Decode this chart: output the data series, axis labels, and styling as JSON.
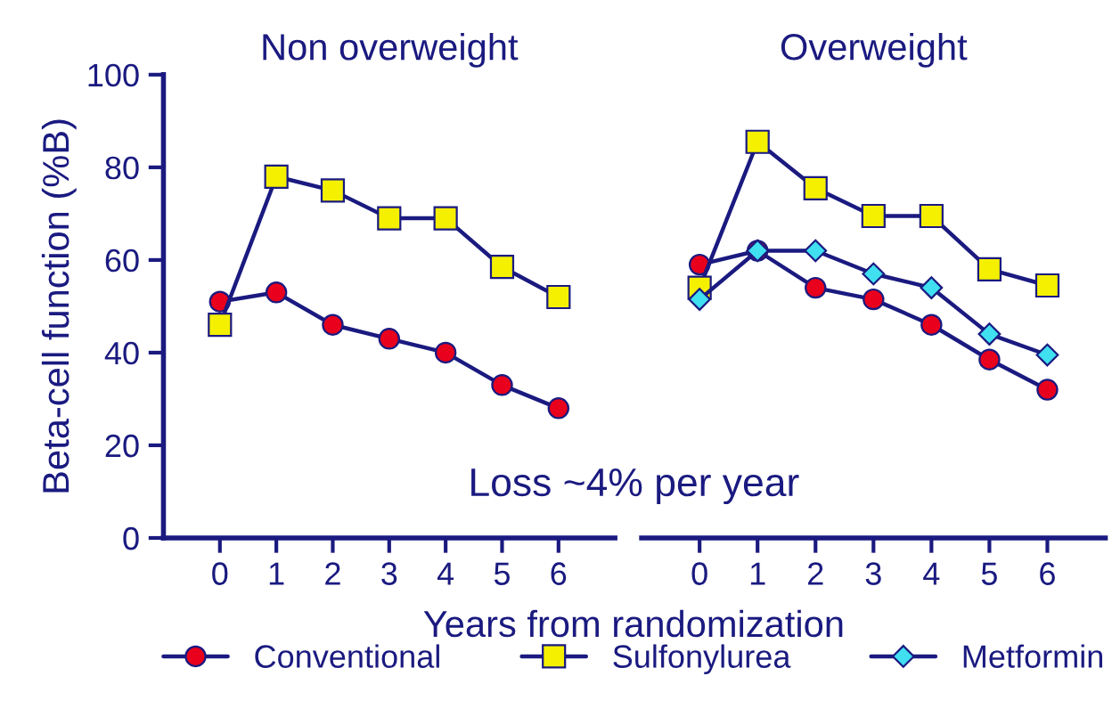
{
  "chart_data": [
    {
      "type": "line",
      "title": "Non overweight",
      "xlabel": "Years from randomization",
      "ylabel": "Beta-cell function (%B)",
      "x": [
        0,
        1,
        2,
        3,
        4,
        5,
        6
      ],
      "xlim": [
        -1,
        7
      ],
      "xticks": [
        0,
        1,
        2,
        3,
        4,
        5,
        6
      ],
      "ylim": [
        0,
        100
      ],
      "yticks": [
        0,
        20,
        40,
        60,
        80,
        100
      ],
      "grid": false,
      "legend": "bottom",
      "annotations": [
        "Loss ~4% per year"
      ],
      "series": [
        {
          "name": "Conventional",
          "color": "#e8001c",
          "marker": "circle",
          "values": [
            51,
            53,
            46,
            43,
            40,
            33,
            28
          ]
        },
        {
          "name": "Sulfonylurea",
          "color": "#f5f000",
          "marker": "square",
          "values": [
            46,
            78,
            75,
            69,
            69,
            58.5,
            52
          ]
        }
      ]
    },
    {
      "type": "line",
      "title": "Overweight",
      "x": [
        0,
        1,
        2,
        3,
        4,
        5,
        6
      ],
      "xlim": [
        -1,
        7
      ],
      "xticks": [
        0,
        1,
        2,
        3,
        4,
        5,
        6
      ],
      "ylim": [
        0,
        100
      ],
      "tick_labels": "x",
      "grid": false,
      "legend": "bottom",
      "series": [
        {
          "name": "Conventional",
          "color": "#e8001c",
          "marker": "circle",
          "values": [
            59,
            62,
            54,
            51.5,
            46,
            38.5,
            32
          ]
        },
        {
          "name": "Sulfonylurea",
          "color": "#f5f000",
          "marker": "square",
          "values": [
            54,
            85.5,
            75.5,
            69.5,
            69.5,
            58,
            54.5
          ]
        },
        {
          "name": "Metformin",
          "color": "#40e0f0",
          "marker": "diamond",
          "values": [
            51.5,
            62,
            62,
            57,
            54,
            44,
            39.5
          ]
        }
      ]
    }
  ]
}
